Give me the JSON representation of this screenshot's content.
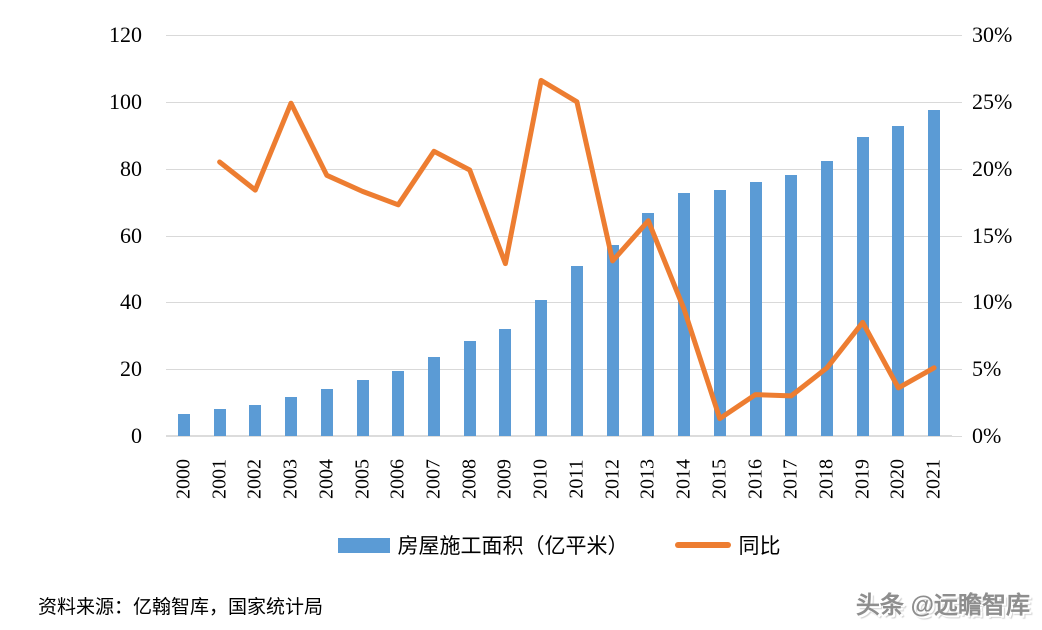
{
  "chart_data": {
    "type": "bar",
    "subtype": "combo-bar-line",
    "categories": [
      "2000",
      "2001",
      "2002",
      "2003",
      "2004",
      "2005",
      "2006",
      "2007",
      "2008",
      "2009",
      "2010",
      "2011",
      "2012",
      "2013",
      "2014",
      "2015",
      "2016",
      "2017",
      "2018",
      "2019",
      "2020",
      "2021"
    ],
    "series": [
      {
        "name": "房屋施工面积（亿平米）",
        "type": "bar",
        "axis": "left",
        "color": "#5b9bd5",
        "values": [
          6.6,
          8.0,
          9.4,
          11.8,
          14.1,
          16.7,
          19.4,
          23.6,
          28.3,
          31.9,
          40.6,
          50.8,
          57.3,
          66.6,
          72.6,
          73.6,
          75.9,
          78.2,
          82.2,
          89.4,
          92.7,
          97.5
        ]
      },
      {
        "name": "同比",
        "type": "line",
        "axis": "right",
        "color": "#ed7d31",
        "values": [
          null,
          20.5,
          18.4,
          24.9,
          19.5,
          18.3,
          17.3,
          21.3,
          19.9,
          12.9,
          26.6,
          25.0,
          13.1,
          16.1,
          9.5,
          1.3,
          3.1,
          3.0,
          5.1,
          8.5,
          3.6,
          5.1
        ]
      }
    ],
    "left_axis": {
      "min": 0,
      "max": 120,
      "step": 20,
      "ticks": [
        "120",
        "100",
        "80",
        "60",
        "40",
        "20",
        "0"
      ]
    },
    "right_axis": {
      "min": 0,
      "max": 30,
      "step": 5,
      "ticks": [
        "30%",
        "25%",
        "20%",
        "15%",
        "10%",
        "5%",
        "0%"
      ]
    },
    "grid": true,
    "legend_position": "bottom",
    "title": ""
  },
  "legend": {
    "bars": "房屋施工面积（亿平米）",
    "line": "同比"
  },
  "footer": {
    "source": "资料来源：亿翰智库，国家统计局",
    "watermark": "头条 @远瞻智库"
  },
  "colors": {
    "bar": "#5b9bd5",
    "line": "#ed7d31",
    "grid": "#d9d9d9",
    "axis_text": "#000000",
    "watermark": "#8e8e8e"
  }
}
